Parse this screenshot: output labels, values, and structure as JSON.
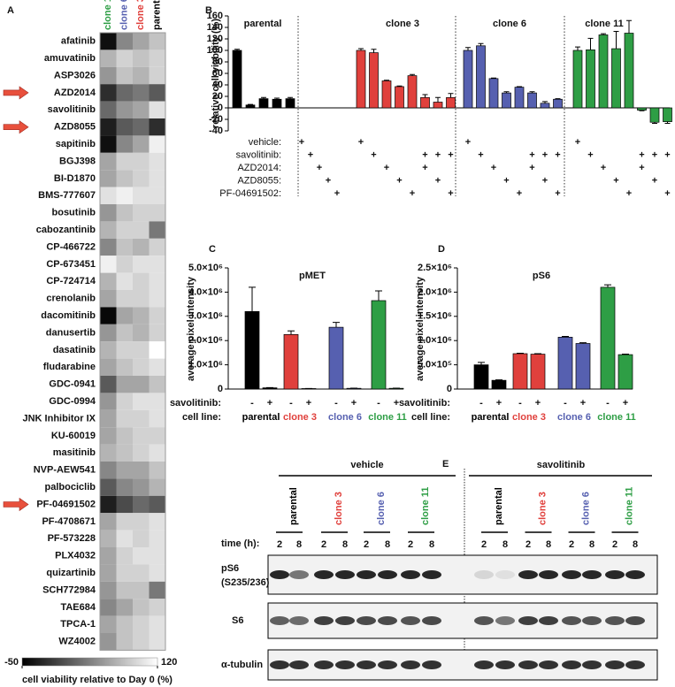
{
  "chart_data": [
    {
      "type": "heatmap",
      "panel": "A",
      "columns": [
        "clone 11",
        "clone 6",
        "clone 3",
        "parental"
      ],
      "column_colors": [
        "#2e9e45",
        "#5660b0",
        "#e0403c",
        "#000000"
      ],
      "rows": [
        "afatinib",
        "amuvatinib",
        "ASP3026",
        "AZD2014",
        "savolitinib",
        "AZD8055",
        "sapitinib",
        "BGJ398",
        "BI-D1870",
        "BMS-777607",
        "bosutinib",
        "cabozantinib",
        "CP-466722",
        "CP-673451",
        "CP-724714",
        "crenolanib",
        "dacomitinib",
        "danusertib",
        "dasatinib",
        "fludarabine",
        "GDC-0941",
        "GDC-0994",
        "JNK Inhibitor IX",
        "KU-60019",
        "masitinib",
        "NVP-AEW541",
        "palbociclib",
        "PF-04691502",
        "PF-4708671",
        "PF-573228",
        "PLX4032",
        "quizartinib",
        "SCH772984",
        "TAE684",
        "TPCA-1",
        "WZ4002"
      ],
      "values": [
        [
          -40,
          40,
          60,
          80
        ],
        [
          70,
          90,
          80,
          90
        ],
        [
          50,
          80,
          70,
          90
        ],
        [
          -20,
          20,
          30,
          10
        ],
        [
          20,
          50,
          60,
          100
        ],
        [
          -30,
          10,
          20,
          -20
        ],
        [
          -40,
          40,
          60,
          110
        ],
        [
          60,
          90,
          90,
          100
        ],
        [
          60,
          80,
          90,
          100
        ],
        [
          100,
          110,
          100,
          100
        ],
        [
          50,
          80,
          90,
          90
        ],
        [
          70,
          90,
          90,
          30
        ],
        [
          40,
          80,
          70,
          90
        ],
        [
          110,
          90,
          100,
          100
        ],
        [
          70,
          100,
          90,
          100
        ],
        [
          60,
          90,
          90,
          100
        ],
        [
          -45,
          60,
          70,
          90
        ],
        [
          50,
          80,
          70,
          90
        ],
        [
          70,
          90,
          90,
          120
        ],
        [
          60,
          80,
          90,
          100
        ],
        [
          10,
          60,
          60,
          80
        ],
        [
          50,
          90,
          100,
          100
        ],
        [
          60,
          90,
          90,
          100
        ],
        [
          60,
          80,
          90,
          90
        ],
        [
          70,
          80,
          90,
          100
        ],
        [
          40,
          60,
          60,
          80
        ],
        [
          10,
          40,
          50,
          70
        ],
        [
          -30,
          0,
          20,
          10
        ],
        [
          60,
          90,
          90,
          100
        ],
        [
          70,
          100,
          90,
          100
        ],
        [
          60,
          90,
          100,
          100
        ],
        [
          60,
          90,
          90,
          100
        ],
        [
          50,
          80,
          80,
          30
        ],
        [
          40,
          60,
          80,
          90
        ],
        [
          60,
          80,
          90,
          100
        ],
        [
          50,
          80,
          90,
          100
        ]
      ],
      "zlim": [
        -50,
        120
      ],
      "colorbar_ticks": [
        -50,
        120
      ],
      "colorbar_label": "cell viability relative to Day 0 (%)"
    },
    {
      "type": "grouped-bar",
      "panel": "B",
      "ylabel": "relative cell viability (%)",
      "ylim": [
        -40,
        160
      ],
      "yticks": [
        -40,
        -20,
        0,
        20,
        40,
        60,
        80,
        100,
        120,
        140,
        160
      ],
      "groups": [
        {
          "name": "parental",
          "color": "#000000",
          "values": [
            100,
            5,
            16,
            15,
            16
          ],
          "errors": [
            2,
            1,
            2,
            2,
            2
          ]
        },
        {
          "name": "clone 3",
          "color": "#e0403c",
          "values": [
            100,
            96,
            47,
            37,
            56,
            18,
            10,
            18
          ],
          "errors": [
            3,
            6,
            1,
            1,
            2,
            5,
            8,
            7
          ]
        },
        {
          "name": "clone 6",
          "color": "#5660b0",
          "values": [
            100,
            108,
            51,
            26,
            36,
            26,
            8,
            15
          ],
          "errors": [
            5,
            4,
            1,
            2,
            1,
            2,
            3,
            1
          ]
        },
        {
          "name": "clone 11",
          "color": "#2e9e45",
          "values": [
            100,
            101,
            127,
            103,
            130,
            -4,
            -25,
            -24
          ],
          "errors": [
            6,
            20,
            2,
            30,
            22,
            1,
            2,
            3
          ]
        }
      ],
      "treatments": [
        {
          "label": "vehicle:",
          "marks": [
            [
              "+",
              null,
              null,
              null,
              null
            ],
            [
              "+",
              null,
              null,
              null,
              null,
              null,
              null,
              null
            ],
            [
              "+",
              null,
              null,
              null,
              null,
              null,
              null,
              null
            ],
            [
              "+",
              null,
              null,
              null,
              null,
              null,
              null,
              null
            ]
          ]
        },
        {
          "label": "savolitinib:",
          "marks": [
            [
              null,
              "+",
              null,
              null,
              null
            ],
            [
              null,
              "+",
              null,
              null,
              null,
              "+",
              "+",
              "+"
            ],
            [
              null,
              "+",
              null,
              null,
              null,
              "+",
              "+",
              "+"
            ],
            [
              null,
              "+",
              null,
              null,
              null,
              "+",
              "+",
              "+"
            ]
          ]
        },
        {
          "label": "AZD2014:",
          "marks": [
            [
              null,
              null,
              "+",
              null,
              null
            ],
            [
              null,
              null,
              "+",
              null,
              null,
              "+",
              null,
              null
            ],
            [
              null,
              null,
              "+",
              null,
              null,
              "+",
              null,
              null
            ],
            [
              null,
              null,
              "+",
              null,
              null,
              "+",
              null,
              null
            ]
          ]
        },
        {
          "label": "AZD8055:",
          "marks": [
            [
              null,
              null,
              null,
              "+",
              null
            ],
            [
              null,
              null,
              null,
              "+",
              null,
              null,
              "+",
              null
            ],
            [
              null,
              null,
              null,
              "+",
              null,
              null,
              "+",
              null
            ],
            [
              null,
              null,
              null,
              "+",
              null,
              null,
              "+",
              null
            ]
          ]
        },
        {
          "label": "PF-04691502:",
          "marks": [
            [
              null,
              null,
              null,
              null,
              "+"
            ],
            [
              null,
              null,
              null,
              null,
              "+",
              null,
              null,
              "+"
            ],
            [
              null,
              null,
              null,
              null,
              "+",
              null,
              null,
              "+"
            ],
            [
              null,
              null,
              null,
              null,
              "+",
              null,
              null,
              "+"
            ]
          ]
        }
      ]
    },
    {
      "type": "paired-bar",
      "panel": "C",
      "title": "pMET",
      "ylabel": "average pixel intensity",
      "ylim": [
        0,
        5000000
      ],
      "yticks": [
        0,
        {
          "value": 1000000,
          "label": "1.0×10⁶"
        },
        {
          "value": 2000000,
          "label": "2.0×10⁶"
        },
        {
          "value": 3000000,
          "label": "3.0×10⁶"
        },
        {
          "value": 4000000,
          "label": "4.0×10⁶"
        },
        {
          "value": 5000000,
          "label": "5.0×10⁶"
        }
      ],
      "row_labels": [
        "savolitinib:",
        "cell line:"
      ],
      "categories": [
        "parental",
        "clone 3",
        "clone 6",
        "clone 11"
      ],
      "colors": [
        "#000000",
        "#e0403c",
        "#5660b0",
        "#2e9e45"
      ],
      "series": [
        {
          "name": "-",
          "values": [
            3200000,
            2250000,
            2550000,
            3650000
          ],
          "errors": [
            1000000,
            150000,
            200000,
            400000
          ]
        },
        {
          "name": "+",
          "values": [
            50000,
            20000,
            30000,
            30000
          ],
          "errors": [
            10000,
            5000,
            5000,
            5000
          ]
        }
      ]
    },
    {
      "type": "paired-bar",
      "panel": "D",
      "title": "pS6",
      "ylabel": "average pixel intensity",
      "ylim": [
        0,
        2500000
      ],
      "yticks": [
        0,
        {
          "value": 500000,
          "label": "5.0×10⁵"
        },
        {
          "value": 1000000,
          "label": "1.0×10⁶"
        },
        {
          "value": 1500000,
          "label": "1.5×10⁶"
        },
        {
          "value": 2000000,
          "label": "2.0×10⁶"
        },
        {
          "value": 2500000,
          "label": "2.5×10⁶"
        }
      ],
      "row_labels": [
        "savolitinib:",
        "cell line:"
      ],
      "categories": [
        "parental",
        "clone 3",
        "clone 6",
        "clone 11"
      ],
      "colors": [
        "#000000",
        "#e0403c",
        "#5660b0",
        "#2e9e45"
      ],
      "series": [
        {
          "name": "-",
          "values": [
            500000,
            730000,
            1070000,
            2100000
          ],
          "errors": [
            50000,
            10000,
            15000,
            50000
          ]
        },
        {
          "name": "+",
          "values": [
            180000,
            720000,
            940000,
            710000
          ],
          "errors": [
            10000,
            10000,
            15000,
            10000
          ]
        }
      ]
    }
  ],
  "blot": {
    "panel": "E",
    "groups": [
      "vehicle",
      "savolitinib"
    ],
    "lanes": [
      "parental",
      "clone 3",
      "clone 6",
      "clone 11"
    ],
    "lane_colors": [
      "#000000",
      "#e0403c",
      "#5660b0",
      "#2e9e45"
    ],
    "time_label": "time (h):",
    "times": [
      "2",
      "8"
    ],
    "rows": [
      [
        "pS6",
        "(S235/236)"
      ],
      [
        "S6"
      ],
      [
        "α-tubulin"
      ]
    ]
  }
}
